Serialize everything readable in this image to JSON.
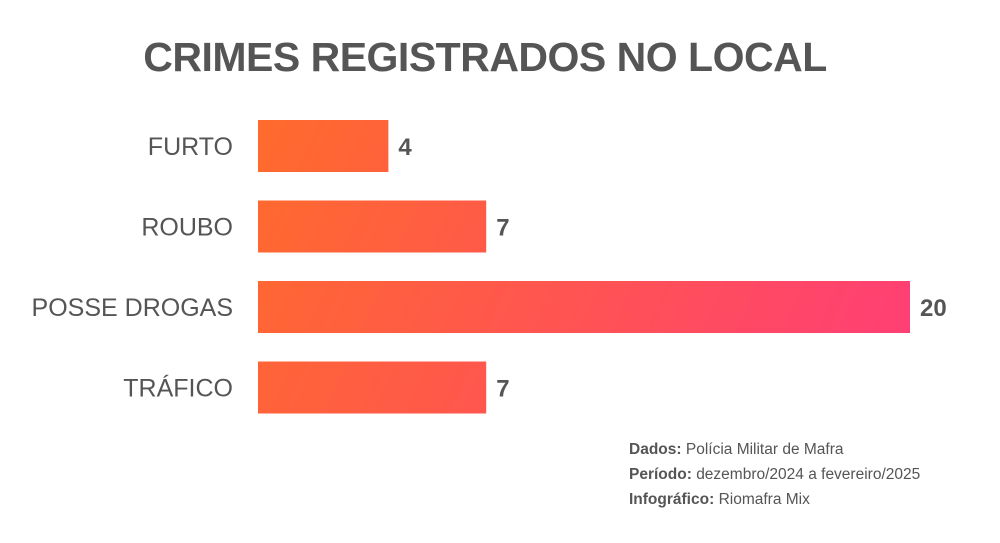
{
  "chart_data": {
    "type": "bar",
    "orientation": "horizontal",
    "title": "CRIMES REGISTRADOS NO LOCAL",
    "categories": [
      "FURTO",
      "ROUBO",
      "POSSE DROGAS",
      "TRÁFICO"
    ],
    "values": [
      4,
      7,
      20,
      7
    ],
    "xlim": [
      0,
      20
    ],
    "grid": false,
    "bar_gradient": [
      "#ff6b2c",
      "#ff3d78"
    ]
  },
  "credits": [
    {
      "label": "Dados:",
      "text": "Polícia Militar de Mafra"
    },
    {
      "label": "Período:",
      "text": "dezembro/2024 a fevereiro/2025"
    },
    {
      "label": "Infográfico:",
      "text": "Riomafra Mix"
    }
  ]
}
